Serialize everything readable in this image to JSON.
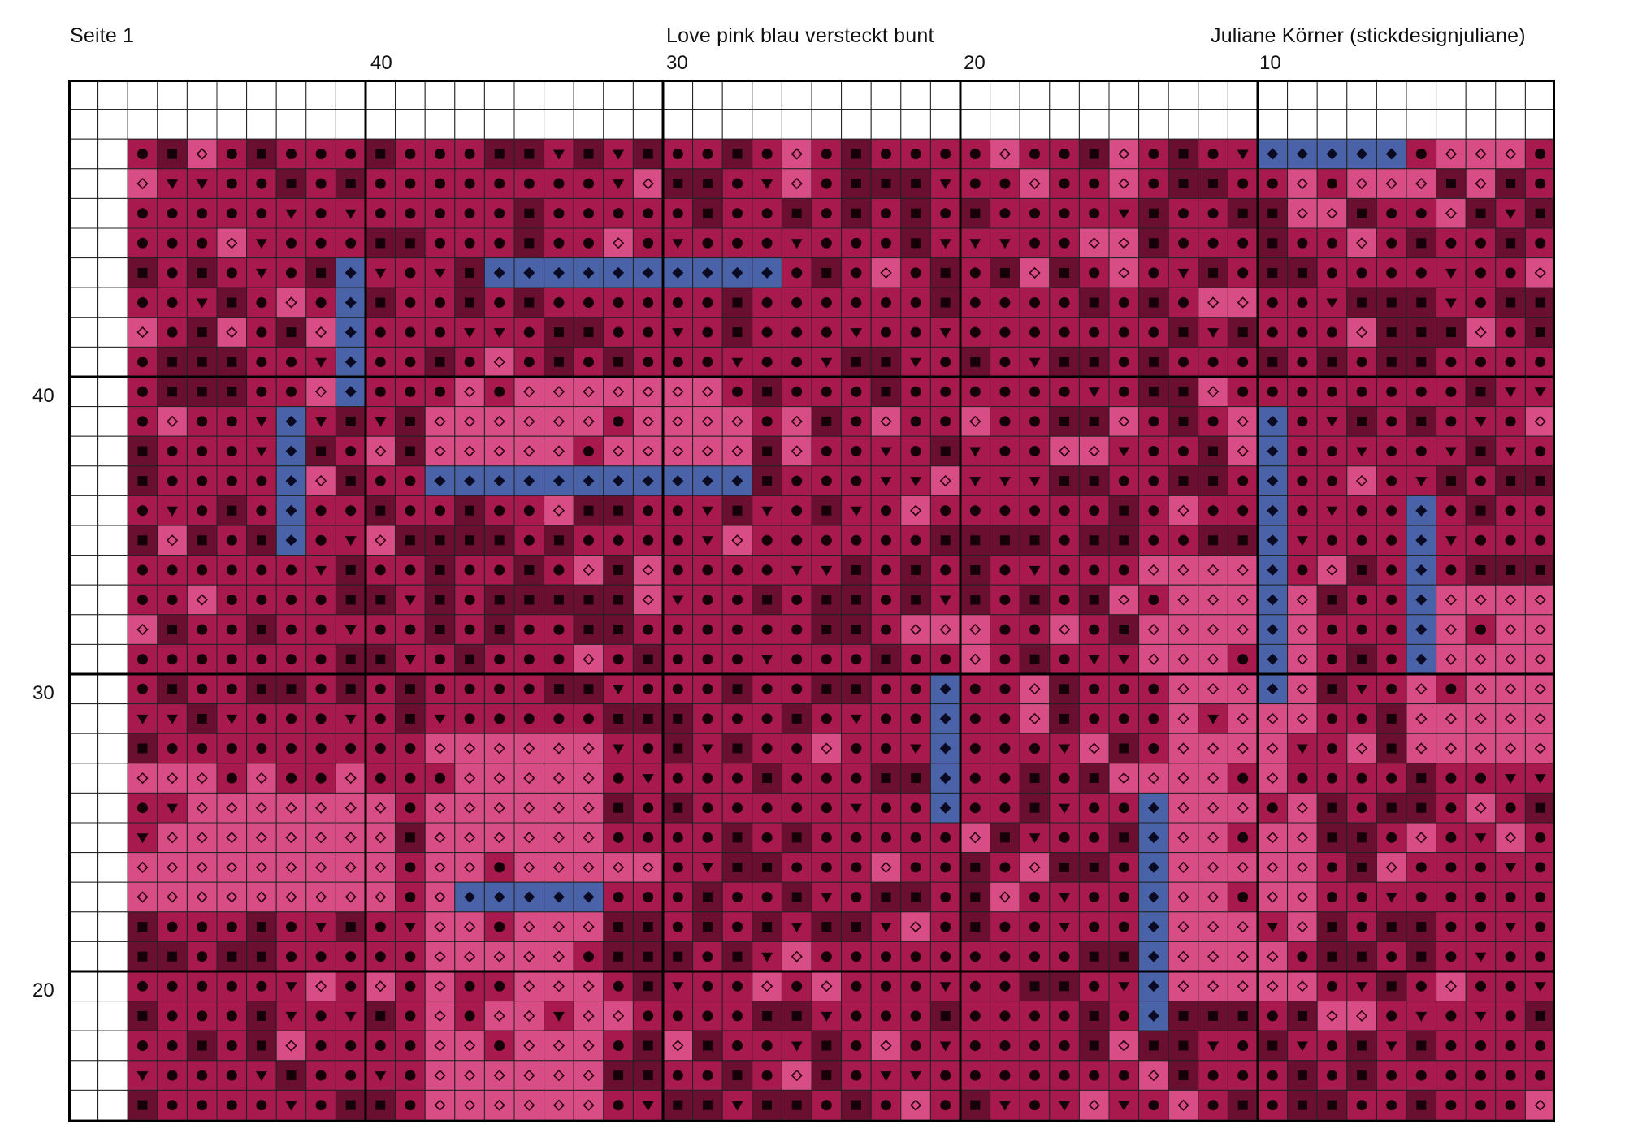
{
  "header": {
    "page_label": "Seite 1",
    "title": "Love pink blau versteckt bunt",
    "author": "Juliane Körner (stickdesignjuliane)"
  },
  "column_numbers": [
    "40",
    "30",
    "20",
    "10"
  ],
  "row_numbers": [
    "40",
    "30",
    "20"
  ],
  "palette": {
    "dark": "#6b0f30",
    "medium": "#a8194e",
    "pink": "#d94d86",
    "blue": "#4a63a8",
    "empty": "#ffffff",
    "grid_line": "#222222",
    "major_line": "#000000"
  },
  "symbols": {
    "dark": "filled-square",
    "medium": "filled-circle",
    "pink": "open-diamond",
    "blue": "filled-diamond",
    "alt": "filled-triangle-down"
  }
}
